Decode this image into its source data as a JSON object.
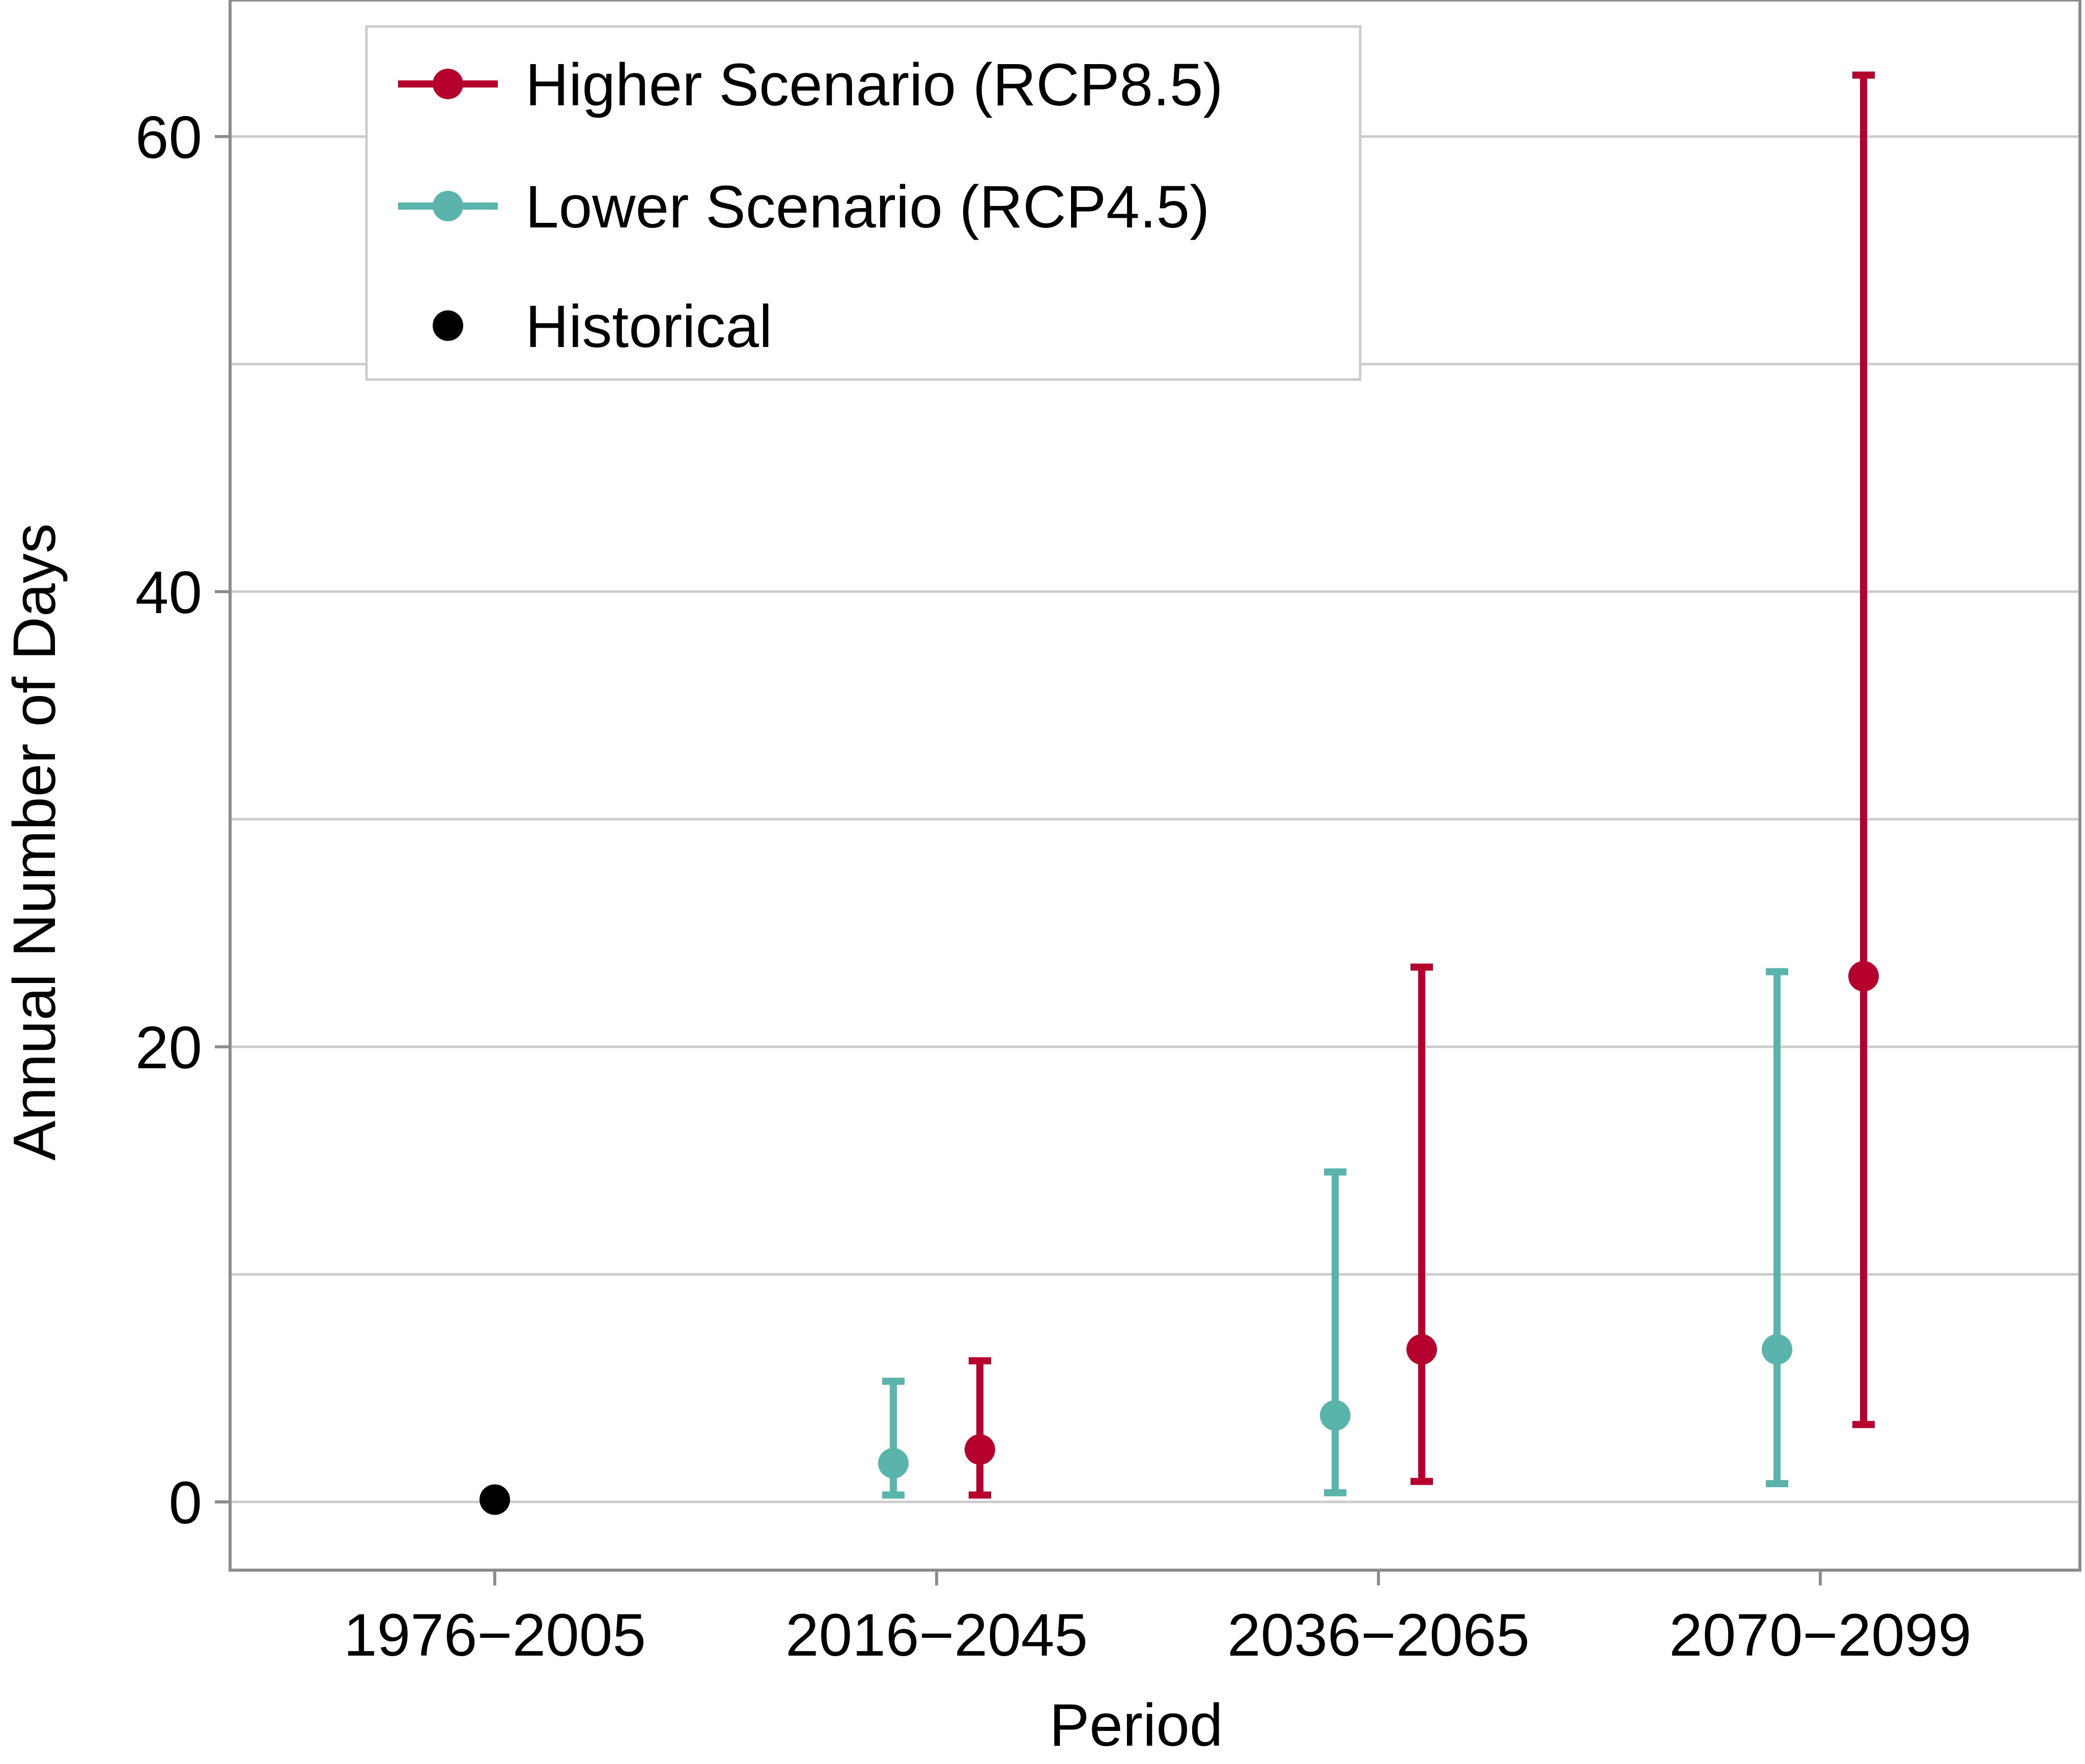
{
  "colors": {
    "higher": "#b5002e",
    "lower": "#5ab4ac",
    "historical": "#000000",
    "grid": "#cccccc",
    "frame": "#8c8c8c"
  },
  "legend": {
    "placement": "top-left",
    "items": [
      {
        "label": "Higher Scenario (RCP8.5)",
        "series": "higher",
        "style": "line-marker"
      },
      {
        "label": "Lower Scenario (RCP4.5)",
        "series": "lower",
        "style": "line-marker"
      },
      {
        "label": "Historical",
        "series": "historical",
        "style": "marker"
      }
    ]
  },
  "chart_data": {
    "type": "scatter",
    "xlabel": "Period",
    "ylabel": "Annual Number of Days",
    "categories": [
      "1976−2005",
      "2016−2045",
      "2036−2065",
      "2070−2099"
    ],
    "ylim": [
      -3,
      66
    ],
    "yticks": [
      0,
      20,
      40,
      60
    ],
    "grid": true,
    "series": [
      {
        "name": "Historical",
        "key": "historical",
        "points": [
          {
            "category": "1976−2005",
            "value": 0.1
          }
        ]
      },
      {
        "name": "Lower Scenario (RCP4.5)",
        "key": "lower",
        "points": [
          {
            "category": "2016−2045",
            "value": 1.7,
            "low": 0.3,
            "high": 5.3
          },
          {
            "category": "2036−2065",
            "value": 3.8,
            "low": 0.4,
            "high": 14.5
          },
          {
            "category": "2070−2099",
            "value": 6.7,
            "low": 0.8,
            "high": 23.3
          }
        ]
      },
      {
        "name": "Higher Scenario (RCP8.5)",
        "key": "higher",
        "points": [
          {
            "category": "2016−2045",
            "value": 2.3,
            "low": 0.3,
            "high": 6.2
          },
          {
            "category": "2036−2065",
            "value": 6.7,
            "low": 0.9,
            "high": 23.5
          },
          {
            "category": "2070−2099",
            "value": 23.1,
            "low": 3.4,
            "high": 62.7
          }
        ]
      }
    ]
  }
}
